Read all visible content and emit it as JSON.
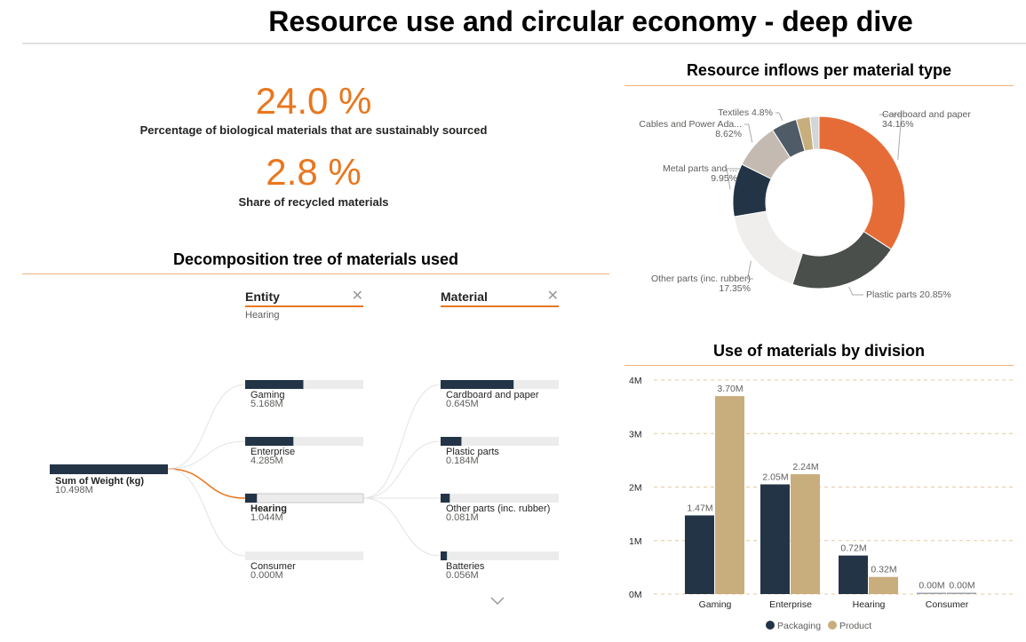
{
  "title": "Resource use and circular economy - deep dive",
  "kpis": [
    {
      "value": "24.0 %",
      "label": "Percentage of biological materials that are sustainably sourced"
    },
    {
      "value": "2.8 %",
      "label": "Share of recycled materials"
    }
  ],
  "decomposition": {
    "title": "Decomposition tree of materials used",
    "root": {
      "label": "Sum of Weight (kg)",
      "value": "10.498M",
      "num": 10.498
    },
    "entity_header": "Entity",
    "entity_selected": "Hearing",
    "material_header": "Material",
    "entities": [
      {
        "label": "Gaming",
        "value": "5.168M",
        "num": 5.168
      },
      {
        "label": "Enterprise",
        "value": "4.285M",
        "num": 4.285
      },
      {
        "label": "Hearing",
        "value": "1.044M",
        "num": 1.044
      },
      {
        "label": "Consumer",
        "value": "0.000M",
        "num": 0
      }
    ],
    "materials": [
      {
        "label": "Cardboard and paper",
        "value": "0.645M",
        "num": 0.645
      },
      {
        "label": "Plastic parts",
        "value": "0.184M",
        "num": 0.184
      },
      {
        "label": "Other parts (inc. rubber)",
        "value": "0.081M",
        "num": 0.081
      },
      {
        "label": "Batteries",
        "value": "0.056M",
        "num": 0.056
      }
    ]
  },
  "chart_data": [
    {
      "type": "pie",
      "title": "Resource inflows per material type",
      "slices": [
        {
          "name": "Cardboard and paper",
          "label": "Cardboard and paper",
          "pct": "34.16%",
          "value": 34.16,
          "color": "#e66c37"
        },
        {
          "name": "Plastic parts",
          "label": "Plastic parts 20.85%",
          "pct": "",
          "value": 20.85,
          "color": "#4a4f4b"
        },
        {
          "name": "Other parts (inc. rubber)",
          "label": "Other parts (inc. rubber)",
          "pct": "17.35%",
          "value": 17.35,
          "color": "#efeeec"
        },
        {
          "name": "Metal parts and ...",
          "label": "Metal parts and ...",
          "pct": "9.95%",
          "value": 9.95,
          "color": "#233446"
        },
        {
          "name": "Cables and Power Ada...",
          "label": "Cables and Power Ada...",
          "pct": "8.62%",
          "value": 8.62,
          "color": "#c4bab2"
        },
        {
          "name": "Textiles",
          "label": "Textiles 4.8%",
          "pct": "",
          "value": 4.8,
          "color": "#4f5b66"
        },
        {
          "name": "",
          "label": "",
          "pct": "",
          "value": 2.6,
          "color": "#c9ae7d"
        },
        {
          "name": "",
          "label": "",
          "pct": "",
          "value": 1.67,
          "color": "#d3d6d9"
        }
      ]
    },
    {
      "type": "bar",
      "title": "Use of materials by division",
      "categories": [
        "Gaming",
        "Enterprise",
        "Hearing",
        "Consumer"
      ],
      "series": [
        {
          "name": "Packaging",
          "values": [
            1.47,
            2.05,
            0.72,
            0.0
          ],
          "labels": [
            "1.47M",
            "2.05M",
            "0.72M",
            "0.00M"
          ],
          "color": "#243447"
        },
        {
          "name": "Product",
          "values": [
            3.7,
            2.24,
            0.32,
            0.0
          ],
          "labels": [
            "3.70M",
            "2.24M",
            "0.32M",
            "0.00M"
          ],
          "color": "#c9ae7d"
        }
      ],
      "yticks": [
        "0M",
        "1M",
        "2M",
        "3M",
        "4M"
      ],
      "ylim": [
        0,
        4
      ]
    }
  ]
}
